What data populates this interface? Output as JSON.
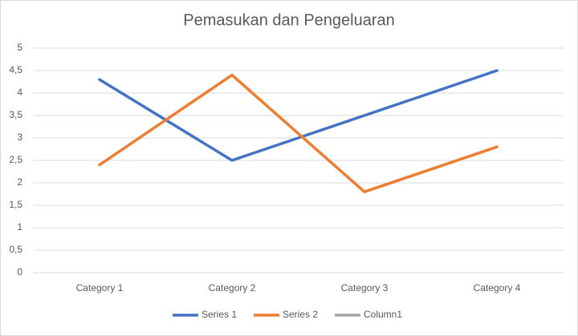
{
  "chart_data": {
    "type": "line",
    "title": "Pemasukan dan Pengeluaran",
    "categories": [
      "Category 1",
      "Category 2",
      "Category 3",
      "Category 4"
    ],
    "series": [
      {
        "name": "Series 1",
        "color": "#4472c4",
        "values": [
          4.3,
          2.5,
          3.5,
          4.5
        ]
      },
      {
        "name": "Series 2",
        "color": "#ed7d31",
        "values": [
          2.4,
          4.4,
          1.8,
          2.8
        ]
      },
      {
        "name": "Column1",
        "color": "#a5a5a5",
        "values": [
          null,
          null,
          null,
          null
        ]
      }
    ],
    "ylim": [
      0,
      5
    ],
    "yticks": [
      0,
      {
        "value": 0.5,
        "label": "0,5"
      },
      1,
      {
        "value": 1.5,
        "label": "1,5"
      },
      2,
      {
        "value": 2.5,
        "label": "2,5"
      },
      3,
      {
        "value": 3.5,
        "label": "3,5"
      },
      4,
      {
        "value": 4.5,
        "label": "4,5"
      },
      5
    ],
    "grid": true,
    "legend": "bottom"
  }
}
